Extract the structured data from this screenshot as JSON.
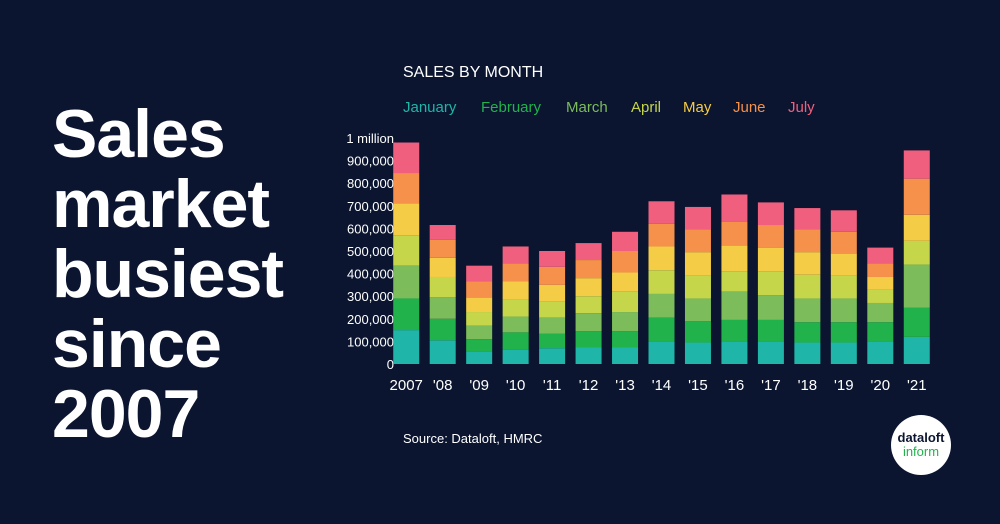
{
  "headline": [
    "Sales",
    "market",
    "busiest",
    "since",
    "2007"
  ],
  "source": "Source: Dataloft, HMRC",
  "logo": {
    "top": "dataloft",
    "bottom": "inform"
  },
  "chart_data": {
    "type": "stacked_bar",
    "title": "SALES BY MONTH",
    "categories": [
      "2007",
      "'08",
      "'09",
      "'10",
      "'11",
      "'12",
      "'13",
      "'14",
      "'15",
      "'16",
      "'17",
      "'18",
      "'19",
      "'20",
      "'21"
    ],
    "series": [
      {
        "name": "January",
        "color": "#1fb5a8",
        "values": [
          150000,
          105000,
          55000,
          65000,
          70000,
          75000,
          75000,
          100000,
          95000,
          100000,
          100000,
          95000,
          95000,
          100000,
          120000
        ]
      },
      {
        "name": "February",
        "color": "#22b24c",
        "values": [
          140000,
          95000,
          55000,
          75000,
          65000,
          70000,
          70000,
          105000,
          95000,
          95000,
          95000,
          90000,
          90000,
          85000,
          130000
        ]
      },
      {
        "name": "March",
        "color": "#7cbc5a",
        "values": [
          145000,
          95000,
          60000,
          70000,
          70000,
          80000,
          85000,
          105000,
          100000,
          125000,
          110000,
          105000,
          105000,
          85000,
          190000
        ]
      },
      {
        "name": "April",
        "color": "#c6d64a",
        "values": [
          135000,
          90000,
          60000,
          75000,
          70000,
          75000,
          90000,
          105000,
          100000,
          90000,
          105000,
          105000,
          100000,
          60000,
          105000
        ]
      },
      {
        "name": "May",
        "color": "#f5cc45",
        "values": [
          140000,
          85000,
          65000,
          80000,
          75000,
          80000,
          85000,
          105000,
          105000,
          115000,
          105000,
          100000,
          100000,
          55000,
          115000
        ]
      },
      {
        "name": "June",
        "color": "#f5914a",
        "values": [
          135000,
          80000,
          70000,
          80000,
          80000,
          80000,
          95000,
          100000,
          100000,
          105000,
          100000,
          100000,
          95000,
          60000,
          160000
        ]
      },
      {
        "name": "July",
        "color": "#f0607e",
        "values": [
          135000,
          65000,
          70000,
          75000,
          70000,
          75000,
          85000,
          100000,
          100000,
          120000,
          100000,
          95000,
          95000,
          70000,
          125000
        ]
      }
    ],
    "ylim": [
      0,
      1000000
    ],
    "yticks": [
      0,
      {
        "value": 100000,
        "label": "100,000"
      },
      {
        "value": 200000,
        "label": "200,000"
      },
      {
        "value": 300000,
        "label": "300,000"
      },
      {
        "value": 400000,
        "label": "400,000"
      },
      {
        "value": 500000,
        "label": "500,000"
      },
      {
        "value": 600000,
        "label": "600,000"
      },
      {
        "value": 700000,
        "label": "700,000"
      },
      {
        "value": 800000,
        "label": "800,000"
      },
      {
        "value": 900000,
        "label": "900,000"
      },
      {
        "value": 1000000,
        "label": "1 million"
      }
    ],
    "grid": false
  }
}
